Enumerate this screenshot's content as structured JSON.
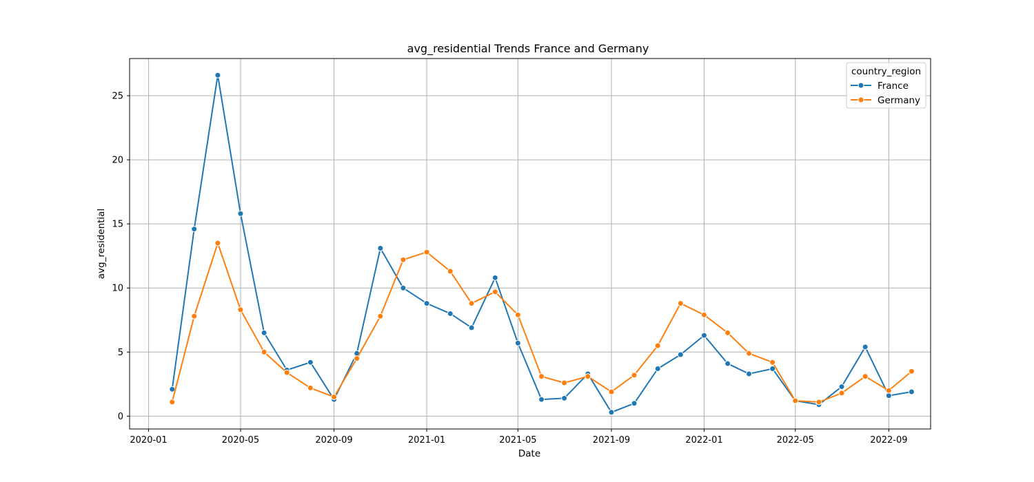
{
  "chart_data": {
    "type": "line",
    "title": "avg_residential Trends France and Germany",
    "xlabel": "Date",
    "ylabel": "avg_residential",
    "x": [
      "2020-02-01",
      "2020-03-01",
      "2020-04-01",
      "2020-05-01",
      "2020-06-01",
      "2020-07-01",
      "2020-08-01",
      "2020-09-01",
      "2020-10-01",
      "2020-11-01",
      "2020-12-01",
      "2021-01-01",
      "2021-02-01",
      "2021-03-01",
      "2021-04-01",
      "2021-05-01",
      "2021-06-01",
      "2021-07-01",
      "2021-08-01",
      "2021-09-01",
      "2021-10-01",
      "2021-11-01",
      "2021-12-01",
      "2022-01-01",
      "2022-02-01",
      "2022-03-01",
      "2022-04-01",
      "2022-05-01",
      "2022-06-01",
      "2022-07-01",
      "2022-08-01",
      "2022-09-01",
      "2022-10-01"
    ],
    "series": [
      {
        "name": "France",
        "color": "#1f77b4",
        "values": [
          2.1,
          14.6,
          26.6,
          15.8,
          6.5,
          3.6,
          4.2,
          1.3,
          4.9,
          13.1,
          10.0,
          8.8,
          8.0,
          6.9,
          10.8,
          5.7,
          1.3,
          1.4,
          3.3,
          0.3,
          1.0,
          3.7,
          4.8,
          6.3,
          4.1,
          3.3,
          3.7,
          1.2,
          0.9,
          2.3,
          5.4,
          1.6,
          1.9
        ]
      },
      {
        "name": "Germany",
        "color": "#ff7f0e",
        "values": [
          1.1,
          7.8,
          13.5,
          8.3,
          5.0,
          3.4,
          2.2,
          1.5,
          4.5,
          7.8,
          12.2,
          12.8,
          11.3,
          8.8,
          9.7,
          7.9,
          3.1,
          2.6,
          3.1,
          1.9,
          3.2,
          5.5,
          8.8,
          7.9,
          6.5,
          4.9,
          4.2,
          1.2,
          1.1,
          1.8,
          3.1,
          2.0,
          3.5
        ]
      }
    ],
    "x_ticks": [
      "2020-01",
      "2020-05",
      "2020-09",
      "2021-01",
      "2021-05",
      "2021-09",
      "2022-01",
      "2022-05",
      "2022-09"
    ],
    "y_ticks": [
      0,
      5,
      10,
      15,
      20,
      25
    ],
    "ylim": [
      -1.0,
      27.9
    ],
    "xlim": [
      "2019-12-07",
      "2022-10-26"
    ],
    "grid": true,
    "legend": {
      "title": "country_region",
      "placement": "top-right"
    }
  }
}
